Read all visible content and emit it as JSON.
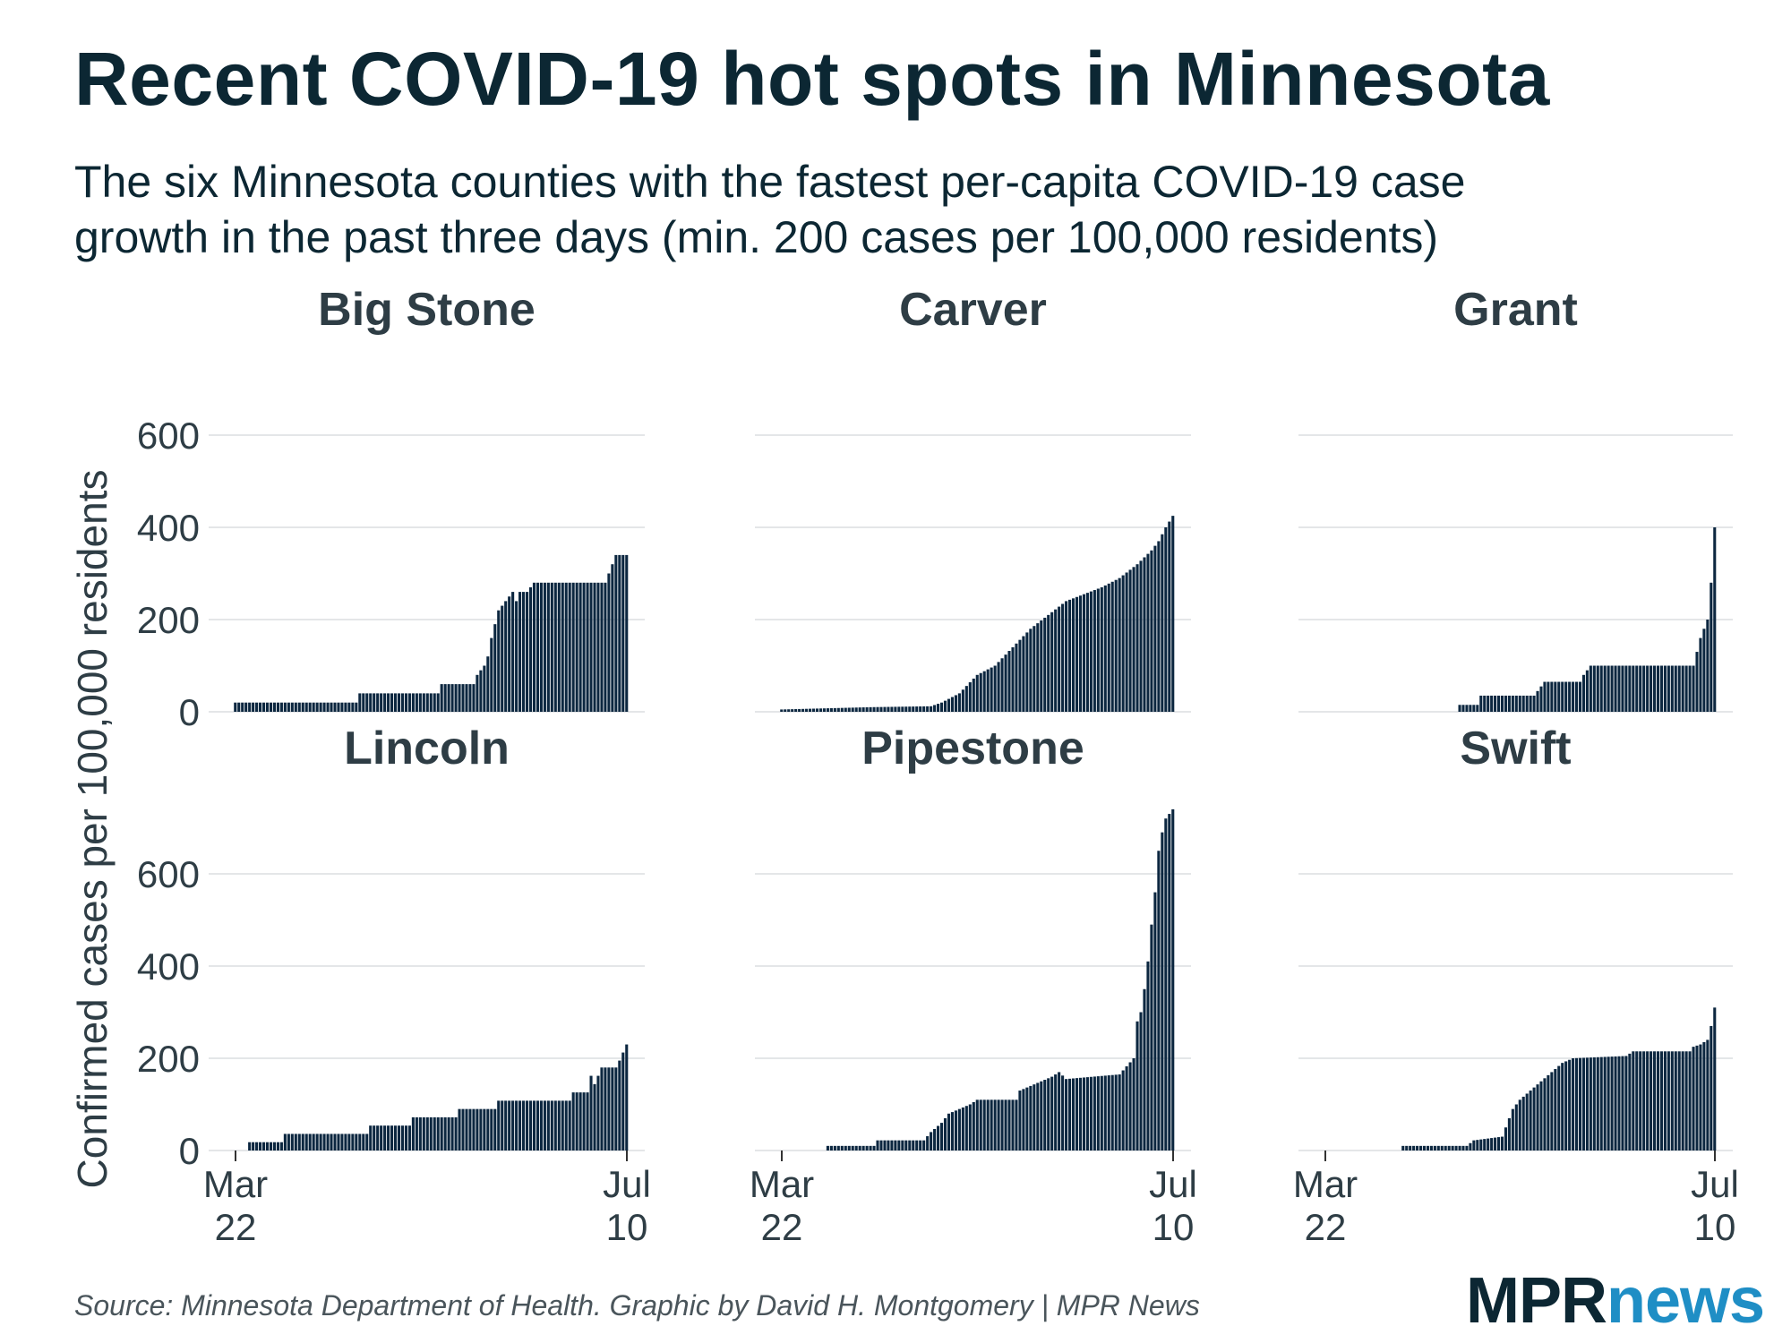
{
  "title": "Recent COVID-19 hot spots in Minnesota",
  "subtitle": [
    "The six Minnesota counties with the fastest per-capita COVID-19 case",
    "growth in the past three days (min. 200 cases per 100,000 residents)"
  ],
  "source": "Source: Minnesota Department of Health. Graphic by David H. Montgomery | MPR News",
  "logo": {
    "mpr": "MPR",
    "news": "news"
  },
  "colors": {
    "bar": "#0c2740",
    "grid": "#e4e6e8",
    "text": "#2e3d45",
    "title": "#0c2733",
    "news": "#1f8ec5"
  },
  "chart_data": {
    "type": "bar",
    "title": "Recent COVID-19 hot spots in Minnesota",
    "ylabel": "Confirmed cases per 100,000 residents",
    "xlabel": "",
    "ylim": [
      0,
      740
    ],
    "yticks": [
      0,
      200,
      400,
      600
    ],
    "ytick_labels": [
      "0",
      "200",
      "400",
      "600"
    ],
    "x_range": [
      "Mar 22",
      "Jul 10"
    ],
    "xticks": [
      {
        "day": 0,
        "line1": "Mar",
        "line2": "22"
      },
      {
        "day": 110,
        "line1": "Jul",
        "line2": "10"
      }
    ],
    "grid": true,
    "panels": [
      {
        "name": "Big Stone",
        "keyframes": [
          [
            0,
            20
          ],
          [
            34,
            20
          ],
          [
            35,
            40
          ],
          [
            57,
            40
          ],
          [
            58,
            60
          ],
          [
            67,
            60
          ],
          [
            68,
            80
          ],
          [
            70,
            100
          ],
          [
            71,
            120
          ],
          [
            72,
            160
          ],
          [
            74,
            220
          ],
          [
            76,
            240
          ],
          [
            78,
            260
          ],
          [
            79,
            240
          ],
          [
            80,
            260
          ],
          [
            82,
            260
          ],
          [
            84,
            280
          ],
          [
            104,
            280
          ],
          [
            105,
            300
          ],
          [
            107,
            340
          ],
          [
            110,
            340
          ]
        ]
      },
      {
        "name": "Carver",
        "keyframes": [
          [
            0,
            5
          ],
          [
            25,
            10
          ],
          [
            42,
            12
          ],
          [
            45,
            20
          ],
          [
            50,
            40
          ],
          [
            55,
            80
          ],
          [
            60,
            100
          ],
          [
            65,
            140
          ],
          [
            70,
            180
          ],
          [
            75,
            210
          ],
          [
            80,
            240
          ],
          [
            85,
            255
          ],
          [
            90,
            270
          ],
          [
            95,
            290
          ],
          [
            100,
            320
          ],
          [
            104,
            350
          ],
          [
            106,
            370
          ],
          [
            108,
            400
          ],
          [
            110,
            425
          ]
        ]
      },
      {
        "name": "Grant",
        "keyframes": [
          [
            38,
            15
          ],
          [
            43,
            15
          ],
          [
            44,
            35
          ],
          [
            59,
            35
          ],
          [
            60,
            45
          ],
          [
            62,
            65
          ],
          [
            72,
            65
          ],
          [
            73,
            80
          ],
          [
            75,
            100
          ],
          [
            104,
            100
          ],
          [
            105,
            130
          ],
          [
            106,
            160
          ],
          [
            107,
            180
          ],
          [
            108,
            200
          ],
          [
            109,
            280
          ],
          [
            110,
            400
          ]
        ]
      },
      {
        "name": "Lincoln",
        "keyframes": [
          [
            4,
            18
          ],
          [
            13,
            18
          ],
          [
            14,
            36
          ],
          [
            37,
            36
          ],
          [
            38,
            54
          ],
          [
            49,
            54
          ],
          [
            50,
            72
          ],
          [
            62,
            72
          ],
          [
            63,
            90
          ],
          [
            73,
            90
          ],
          [
            74,
            108
          ],
          [
            94,
            108
          ],
          [
            95,
            126
          ],
          [
            99,
            126
          ],
          [
            100,
            162
          ],
          [
            101,
            144
          ],
          [
            102,
            162
          ],
          [
            103,
            180
          ],
          [
            107,
            180
          ],
          [
            108,
            195
          ],
          [
            110,
            230
          ]
        ]
      },
      {
        "name": "Pipestone",
        "keyframes": [
          [
            13,
            10
          ],
          [
            26,
            10
          ],
          [
            27,
            22
          ],
          [
            40,
            22
          ],
          [
            42,
            40
          ],
          [
            45,
            60
          ],
          [
            47,
            80
          ],
          [
            53,
            100
          ],
          [
            55,
            110
          ],
          [
            66,
            110
          ],
          [
            67,
            130
          ],
          [
            73,
            150
          ],
          [
            76,
            160
          ],
          [
            78,
            170
          ],
          [
            80,
            155
          ],
          [
            95,
            165
          ],
          [
            99,
            200
          ],
          [
            100,
            280
          ],
          [
            101,
            300
          ],
          [
            102,
            350
          ],
          [
            103,
            410
          ],
          [
            104,
            490
          ],
          [
            105,
            560
          ],
          [
            106,
            650
          ],
          [
            107,
            690
          ],
          [
            108,
            720
          ],
          [
            110,
            740
          ]
        ]
      },
      {
        "name": "Swift",
        "keyframes": [
          [
            22,
            10
          ],
          [
            40,
            10
          ],
          [
            42,
            22
          ],
          [
            50,
            30
          ],
          [
            52,
            70
          ],
          [
            53,
            90
          ],
          [
            55,
            110
          ],
          [
            58,
            130
          ],
          [
            61,
            150
          ],
          [
            64,
            170
          ],
          [
            67,
            190
          ],
          [
            70,
            200
          ],
          [
            85,
            205
          ],
          [
            87,
            215
          ],
          [
            103,
            215
          ],
          [
            104,
            225
          ],
          [
            106,
            230
          ],
          [
            108,
            240
          ],
          [
            109,
            270
          ],
          [
            110,
            310
          ]
        ]
      }
    ]
  }
}
